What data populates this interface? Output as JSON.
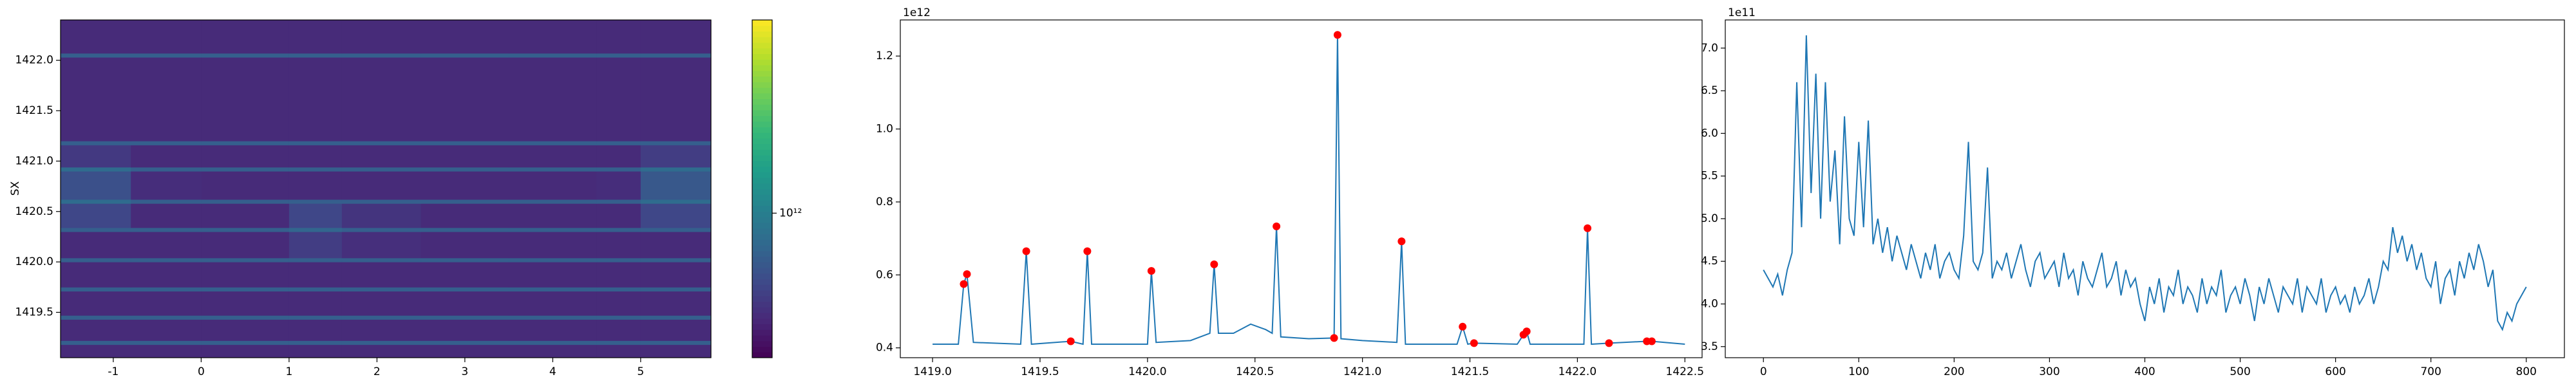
{
  "chart_data": [
    {
      "type": "heatmap",
      "ylabel": "SX",
      "colormap": "viridis",
      "log_color": true,
      "xlim": [
        -1.6,
        5.8
      ],
      "xticks": [
        -1,
        0,
        1,
        2,
        3,
        4,
        5
      ],
      "ylim": [
        1419.05,
        1422.4
      ],
      "yticks": [
        1419.5,
        {
          "value": 1420,
          "label": "1420.0"
        },
        1420.5,
        {
          "value": 1421,
          "label": "1421.0"
        },
        1421.5,
        {
          "value": 1422,
          "label": "1422.0"
        }
      ],
      "xbins": [
        -1.6,
        -0.8,
        0,
        1,
        1.6,
        2.5,
        3.5,
        4.5,
        5.0,
        5.8
      ],
      "ybins": [
        1419.05,
        1419.18,
        1419.22,
        1419.43,
        1419.47,
        1419.71,
        1419.75,
        1420.0,
        1420.04,
        1420.3,
        1420.34,
        1420.58,
        1420.62,
        1420.9,
        1420.94,
        1421.16,
        1421.2,
        1422.03,
        1422.07,
        1422.4
      ],
      "z": [
        [
          420000000000.0,
          420000000000.0,
          420000000000.0,
          420000000000.0,
          420000000000.0,
          420000000000.0,
          420000000000.0,
          420000000000.0,
          420000000000.0
        ],
        [
          700000000000.0,
          700000000000.0,
          700000000000.0,
          700000000000.0,
          700000000000.0,
          700000000000.0,
          700000000000.0,
          700000000000.0,
          700000000000.0
        ],
        [
          420000000000.0,
          420000000000.0,
          420000000000.0,
          420000000000.0,
          420000000000.0,
          420000000000.0,
          420000000000.0,
          420000000000.0,
          420000000000.0
        ],
        [
          700000000000.0,
          700000000000.0,
          700000000000.0,
          700000000000.0,
          700000000000.0,
          700000000000.0,
          700000000000.0,
          700000000000.0,
          700000000000.0
        ],
        [
          420000000000.0,
          420000000000.0,
          420000000000.0,
          420000000000.0,
          420000000000.0,
          420000000000.0,
          420000000000.0,
          420000000000.0,
          420000000000.0
        ],
        [
          700000000000.0,
          700000000000.0,
          700000000000.0,
          700000000000.0,
          700000000000.0,
          700000000000.0,
          700000000000.0,
          700000000000.0,
          700000000000.0
        ],
        [
          420000000000.0,
          420000000000.0,
          420000000000.0,
          420000000000.0,
          420000000000.0,
          420000000000.0,
          420000000000.0,
          420000000000.0,
          420000000000.0
        ],
        [
          700000000000.0,
          700000000000.0,
          700000000000.0,
          700000000000.0,
          700000000000.0,
          700000000000.0,
          700000000000.0,
          700000000000.0,
          700000000000.0
        ],
        [
          420000000000.0,
          420000000000.0,
          420000000000.0,
          500000000000.0,
          440000000000.0,
          420000000000.0,
          420000000000.0,
          420000000000.0,
          420000000000.0
        ],
        [
          700000000000.0,
          700000000000.0,
          700000000000.0,
          750000000000.0,
          700000000000.0,
          700000000000.0,
          700000000000.0,
          700000000000.0,
          700000000000.0
        ],
        [
          550000000000.0,
          420000000000.0,
          420000000000.0,
          550000000000.0,
          460000000000.0,
          420000000000.0,
          420000000000.0,
          420000000000.0,
          550000000000.0
        ],
        [
          800000000000.0,
          700000000000.0,
          700000000000.0,
          700000000000.0,
          700000000000.0,
          700000000000.0,
          700000000000.0,
          700000000000.0,
          800000000000.0
        ],
        [
          600000000000.0,
          430000000000.0,
          420000000000.0,
          420000000000.0,
          420000000000.0,
          420000000000.0,
          420000000000.0,
          430000000000.0,
          650000000000.0
        ],
        [
          800000000000.0,
          700000000000.0,
          700000000000.0,
          700000000000.0,
          700000000000.0,
          700000000000.0,
          700000000000.0,
          700000000000.0,
          800000000000.0
        ],
        [
          480000000000.0,
          420000000000.0,
          420000000000.0,
          420000000000.0,
          420000000000.0,
          420000000000.0,
          420000000000.0,
          420000000000.0,
          500000000000.0
        ],
        [
          700000000000.0,
          700000000000.0,
          700000000000.0,
          700000000000.0,
          700000000000.0,
          700000000000.0,
          700000000000.0,
          700000000000.0,
          700000000000.0
        ],
        [
          420000000000.0,
          420000000000.0,
          420000000000.0,
          420000000000.0,
          420000000000.0,
          420000000000.0,
          420000000000.0,
          420000000000.0,
          420000000000.0
        ],
        [
          700000000000.0,
          700000000000.0,
          700000000000.0,
          700000000000.0,
          700000000000.0,
          700000000000.0,
          700000000000.0,
          700000000000.0,
          700000000000.0
        ],
        [
          420000000000.0,
          420000000000.0,
          420000000000.0,
          420000000000.0,
          420000000000.0,
          420000000000.0,
          420000000000.0,
          420000000000.0,
          420000000000.0
        ]
      ],
      "clim": [
        300000000000.0,
        5000000000000.0
      ],
      "colorbar_ticks": [
        {
          "value": 1000000000000.0,
          "label": "10¹²"
        }
      ]
    },
    {
      "type": "line",
      "offset_label": "1e12",
      "xlim": [
        1418.85,
        1422.58
      ],
      "xticks": [
        {
          "value": 1419,
          "label": "1419.0"
        },
        1419.5,
        {
          "value": 1420,
          "label": "1420.0"
        },
        1420.5,
        {
          "value": 1421,
          "label": "1421.0"
        },
        1421.5,
        {
          "value": 1422,
          "label": "1422.0"
        },
        1422.5
      ],
      "ylim": [
        0.373,
        1.299
      ],
      "yticks": [
        0.4,
        0.6,
        0.8,
        {
          "value": 1,
          "label": "1.0"
        },
        1.2
      ],
      "series": [
        {
          "type": "line",
          "color": "#1f77b4",
          "x": [
            1419.0,
            1419.12,
            1419.145,
            1419.16,
            1419.19,
            1419.41,
            1419.436,
            1419.46,
            1419.643,
            1419.7,
            1419.72,
            1419.74,
            1420.0,
            1420.018,
            1420.04,
            1420.2,
            1420.29,
            1420.31,
            1420.33,
            1420.4,
            1420.48,
            1420.55,
            1420.58,
            1420.6,
            1420.62,
            1420.75,
            1420.868,
            1420.884,
            1420.9,
            1421.0,
            1421.16,
            1421.182,
            1421.2,
            1421.44,
            1421.466,
            1421.49,
            1421.519,
            1421.72,
            1421.749,
            1421.764,
            1421.78,
            1422.03,
            1422.047,
            1422.065,
            1422.147,
            1422.323,
            1422.346,
            1422.5
          ],
          "values": [
            0.41,
            0.41,
            0.575,
            0.602,
            0.415,
            0.41,
            0.665,
            0.41,
            0.418,
            0.41,
            0.665,
            0.41,
            0.41,
            0.611,
            0.415,
            0.42,
            0.44,
            0.629,
            0.44,
            0.44,
            0.465,
            0.45,
            0.44,
            0.733,
            0.43,
            0.425,
            0.427,
            1.258,
            0.425,
            0.42,
            0.415,
            0.692,
            0.41,
            0.41,
            0.458,
            0.41,
            0.413,
            0.41,
            0.436,
            0.445,
            0.41,
            0.41,
            0.728,
            0.41,
            0.413,
            0.418,
            0.418,
            0.41
          ]
        },
        {
          "type": "scatter",
          "color": "#ff0000",
          "x": [
            1419.145,
            1419.16,
            1419.436,
            1419.643,
            1419.72,
            1420.018,
            1420.31,
            1420.6,
            1420.868,
            1420.884,
            1421.182,
            1421.466,
            1421.519,
            1421.749,
            1421.764,
            1422.047,
            1422.147,
            1422.323,
            1422.346
          ],
          "values": [
            0.575,
            0.602,
            0.665,
            0.418,
            0.665,
            0.611,
            0.629,
            0.733,
            0.427,
            1.258,
            0.692,
            0.458,
            0.413,
            0.436,
            0.445,
            0.728,
            0.413,
            0.418,
            0.418
          ]
        }
      ]
    },
    {
      "type": "line",
      "offset_label": "1e11",
      "xlim": [
        -40,
        840
      ],
      "xticks": [
        0,
        100,
        200,
        300,
        400,
        500,
        600,
        700,
        800
      ],
      "ylim": [
        3.37,
        7.33
      ],
      "yticks": [
        3.5,
        {
          "value": 4,
          "label": "4.0"
        },
        4.5,
        {
          "value": 5,
          "label": "5.0"
        },
        5.5,
        {
          "value": 6,
          "label": "6.0"
        },
        6.5,
        {
          "value": 7,
          "label": "7.0"
        }
      ],
      "series": [
        {
          "type": "line",
          "color": "#1f77b4",
          "x": [
            0,
            5,
            10,
            15,
            20,
            25,
            30,
            35,
            40,
            45,
            50,
            55,
            60,
            65,
            70,
            75,
            80,
            85,
            90,
            95,
            100,
            105,
            110,
            115,
            120,
            125,
            130,
            135,
            140,
            145,
            150,
            155,
            160,
            165,
            170,
            175,
            180,
            185,
            190,
            195,
            200,
            205,
            210,
            215,
            220,
            225,
            230,
            235,
            240,
            245,
            250,
            255,
            260,
            265,
            270,
            275,
            280,
            285,
            290,
            295,
            300,
            305,
            310,
            315,
            320,
            325,
            330,
            335,
            340,
            345,
            350,
            355,
            360,
            365,
            370,
            375,
            380,
            385,
            390,
            395,
            400,
            405,
            410,
            415,
            420,
            425,
            430,
            435,
            440,
            445,
            450,
            455,
            460,
            465,
            470,
            475,
            480,
            485,
            490,
            495,
            500,
            505,
            510,
            515,
            520,
            525,
            530,
            535,
            540,
            545,
            550,
            555,
            560,
            565,
            570,
            575,
            580,
            585,
            590,
            595,
            600,
            605,
            610,
            615,
            620,
            625,
            630,
            635,
            640,
            645,
            650,
            655,
            660,
            665,
            670,
            675,
            680,
            685,
            690,
            695,
            700,
            705,
            710,
            715,
            720,
            725,
            730,
            735,
            740,
            745,
            750,
            755,
            760,
            765,
            770,
            775,
            780,
            785,
            790,
            795,
            800
          ],
          "values": [
            4.4,
            4.3,
            4.2,
            4.35,
            4.1,
            4.4,
            4.6,
            6.6,
            4.9,
            7.15,
            5.3,
            6.7,
            5.0,
            6.6,
            5.2,
            5.8,
            4.7,
            6.2,
            5.0,
            4.8,
            5.9,
            4.9,
            6.15,
            4.7,
            5.0,
            4.6,
            4.9,
            4.5,
            4.8,
            4.6,
            4.4,
            4.7,
            4.5,
            4.3,
            4.6,
            4.4,
            4.7,
            4.3,
            4.5,
            4.6,
            4.4,
            4.3,
            4.8,
            5.9,
            4.5,
            4.4,
            4.6,
            5.6,
            4.3,
            4.5,
            4.4,
            4.6,
            4.3,
            4.5,
            4.7,
            4.4,
            4.2,
            4.5,
            4.6,
            4.3,
            4.4,
            4.5,
            4.2,
            4.6,
            4.3,
            4.4,
            4.1,
            4.5,
            4.3,
            4.2,
            4.4,
            4.6,
            4.2,
            4.3,
            4.5,
            4.1,
            4.4,
            4.2,
            4.3,
            4.0,
            3.8,
            4.2,
            4.0,
            4.3,
            3.9,
            4.2,
            4.1,
            4.4,
            4.0,
            4.2,
            4.1,
            3.9,
            4.3,
            4.0,
            4.2,
            4.1,
            4.4,
            3.9,
            4.1,
            4.2,
            4.0,
            4.3,
            4.1,
            3.8,
            4.2,
            4.0,
            4.3,
            4.1,
            3.9,
            4.2,
            4.1,
            4.0,
            4.3,
            3.9,
            4.2,
            4.1,
            4.0,
            4.3,
            3.9,
            4.1,
            4.2,
            4.0,
            4.1,
            3.9,
            4.2,
            4.0,
            4.1,
            4.3,
            4.0,
            4.2,
            4.5,
            4.4,
            4.9,
            4.6,
            4.8,
            4.5,
            4.7,
            4.4,
            4.6,
            4.3,
            4.2,
            4.5,
            4.0,
            4.3,
            4.4,
            4.1,
            4.5,
            4.3,
            4.6,
            4.4,
            4.7,
            4.5,
            4.2,
            4.4,
            3.8,
            3.7,
            3.9,
            3.8,
            4.0,
            4.1,
            4.2
          ]
        }
      ]
    }
  ]
}
